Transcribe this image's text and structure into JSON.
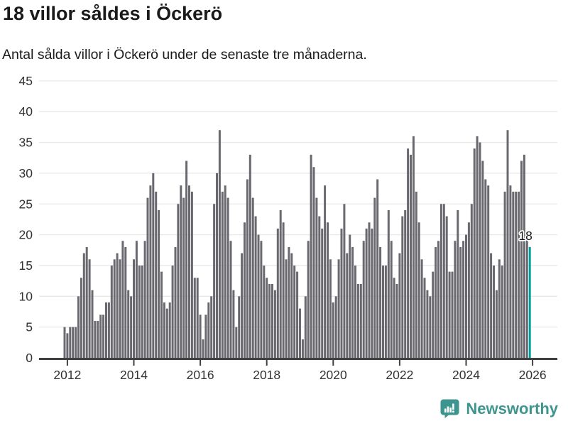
{
  "header": {
    "title": "18 villor såldes i Öckerö",
    "subtitle": "Antal sålda villor i Öckerö under de senaste tre månaderna."
  },
  "footer": {
    "brand": "Newsworthy",
    "logo_icon": "newsworthy-chart-bubble-icon"
  },
  "colors": {
    "bar": "#6a6970",
    "highlight": "#00a0a0",
    "brand": "#3e948e",
    "grid": "#e8e8e8",
    "axis": "#404040",
    "axis_text": "#333333",
    "title_text": "#1a1a1a",
    "annotation_text": "#1a1a1a",
    "annotation_halo": "#ffffff"
  },
  "chart_data": {
    "type": "bar",
    "title": "18 villor såldes i Öckerö",
    "subtitle": "Antal sålda villor i Öckerö under de senaste tre månaderna.",
    "frequency": "monthly",
    "x_start": "2011-12",
    "x_tick_labels": [
      "2012",
      "2014",
      "2016",
      "2018",
      "2020",
      "2022",
      "2024",
      "2026"
    ],
    "ylim": [
      0,
      45
    ],
    "y_ticks": [
      0,
      5,
      10,
      15,
      20,
      25,
      30,
      35,
      40,
      45
    ],
    "grid": true,
    "legend": "none",
    "values": [
      5,
      4,
      5,
      5,
      5,
      10,
      13,
      17,
      18,
      16,
      11,
      6,
      6,
      7,
      7,
      9,
      9,
      15,
      16,
      17,
      16,
      19,
      18,
      11,
      10,
      16,
      19,
      15,
      15,
      19,
      26,
      28,
      30,
      27,
      24,
      14,
      9,
      8,
      9,
      15,
      18,
      25,
      28,
      26,
      32,
      28,
      27,
      13,
      13,
      7,
      3,
      7,
      9,
      10,
      25,
      30,
      37,
      27,
      28,
      26,
      19,
      11,
      5,
      10,
      17,
      22,
      29,
      33,
      26,
      23,
      20,
      19,
      15,
      13,
      12,
      12,
      11,
      21,
      24,
      22,
      16,
      18,
      17,
      15,
      14,
      8,
      3,
      10,
      19,
      33,
      31,
      26,
      23,
      21,
      28,
      22,
      16,
      9,
      10,
      16,
      21,
      25,
      17,
      20,
      18,
      15,
      12,
      12,
      19,
      21,
      22,
      21,
      26,
      29,
      18,
      15,
      15,
      24,
      19,
      13,
      12,
      17,
      23,
      24,
      34,
      33,
      36,
      27,
      22,
      16,
      13,
      11,
      10,
      14,
      18,
      19,
      25,
      25,
      23,
      14,
      14,
      19,
      24,
      18,
      19,
      20,
      22,
      25,
      34,
      36,
      35,
      32,
      29,
      28,
      17,
      15,
      11,
      16,
      15,
      27,
      37,
      28,
      27,
      27,
      27,
      32,
      33,
      20,
      18
    ],
    "highlight": {
      "index": 168,
      "value": 18,
      "label": "18"
    }
  }
}
